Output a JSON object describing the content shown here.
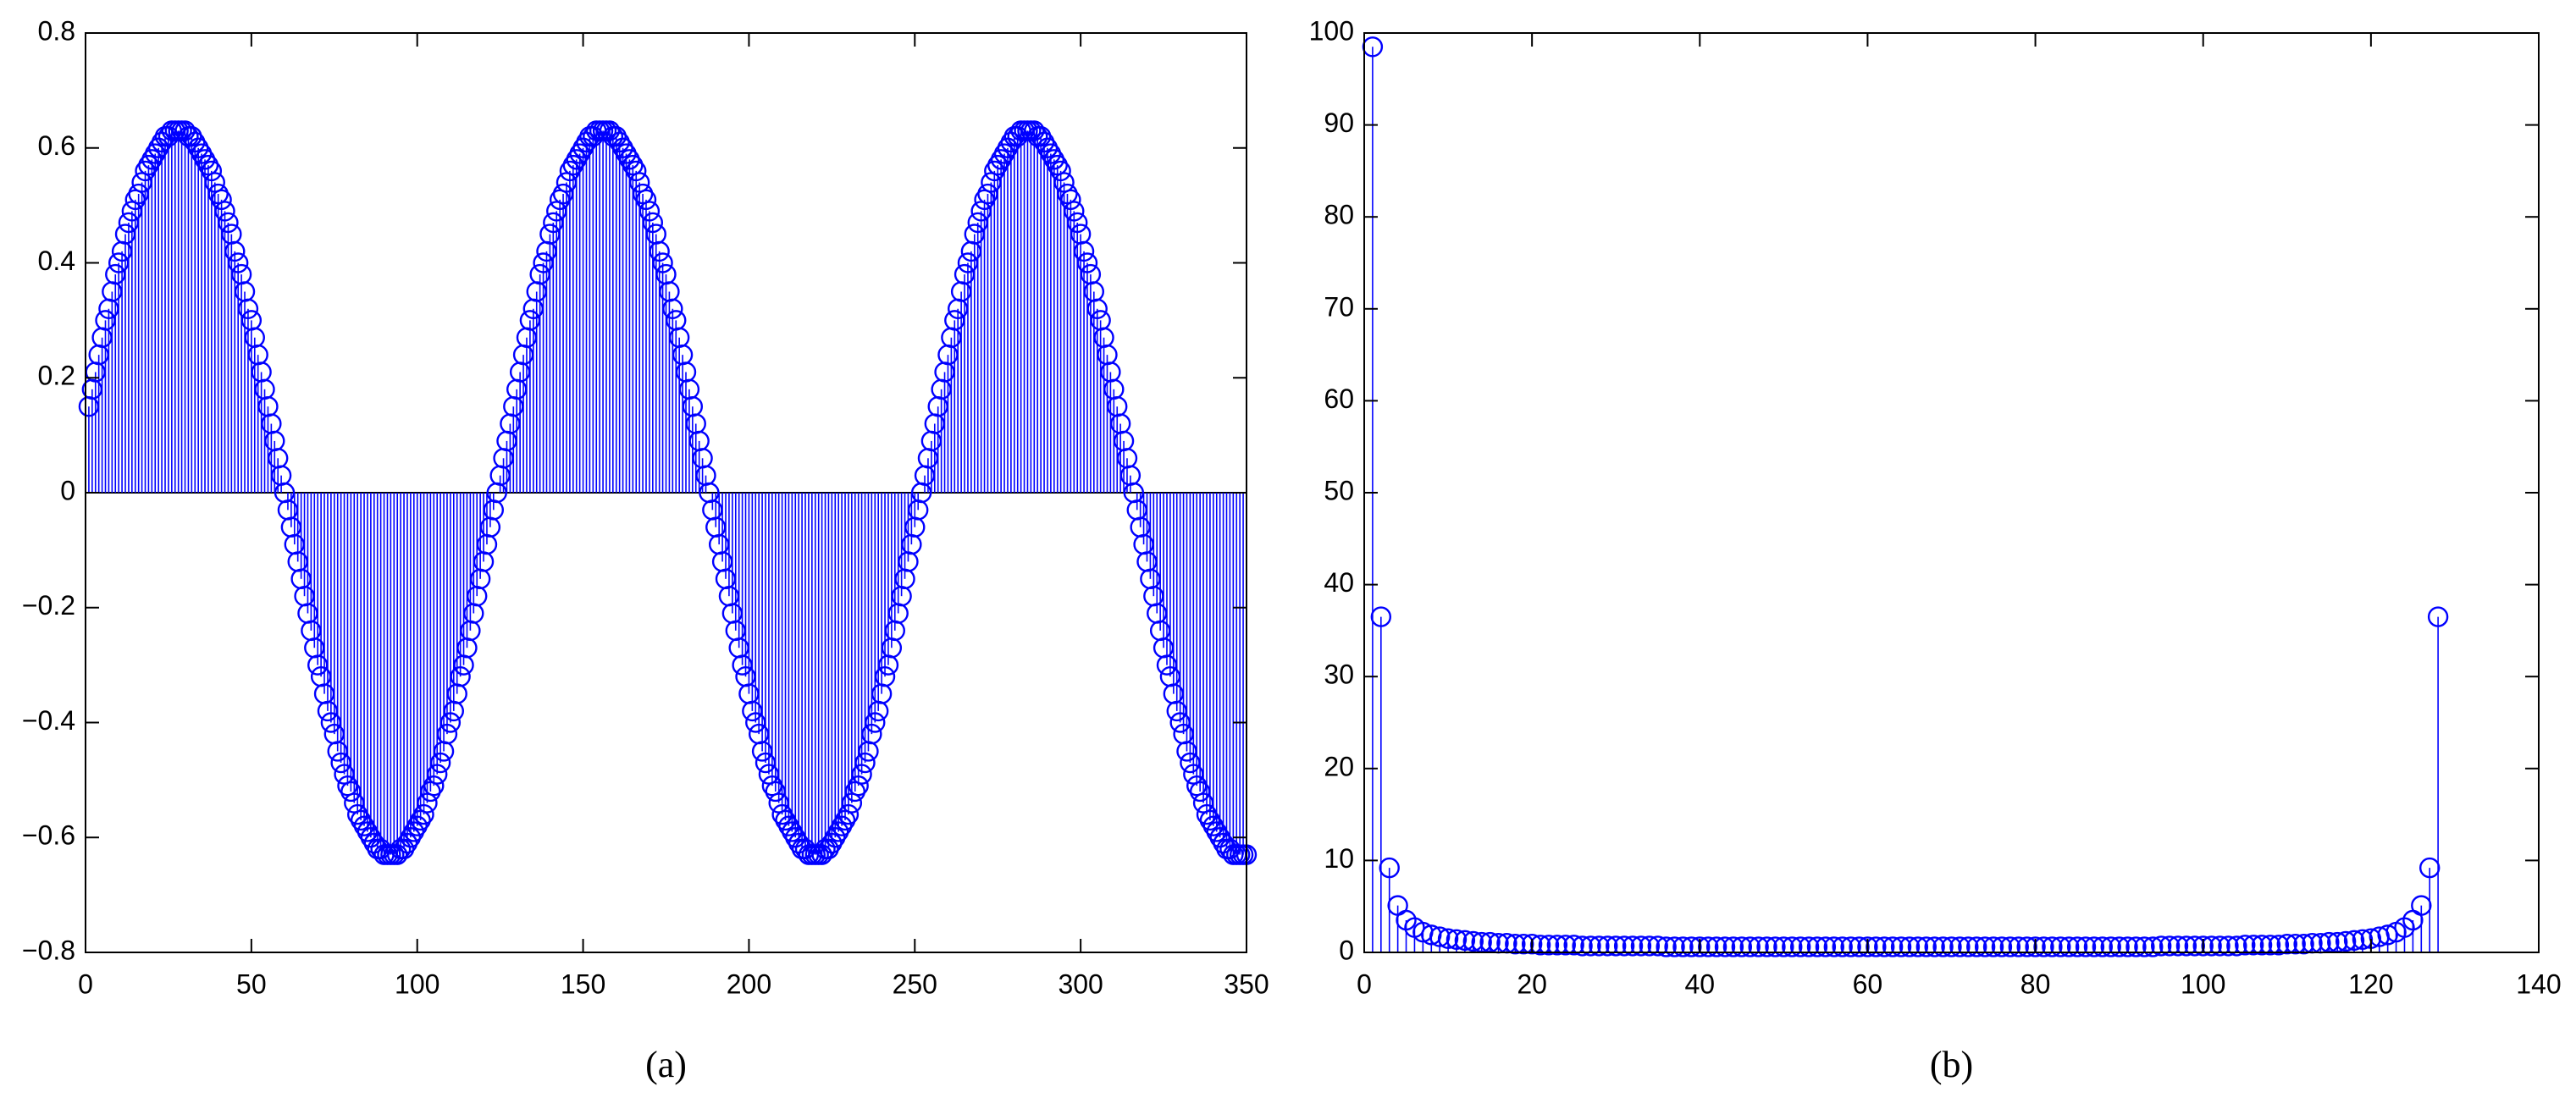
{
  "chart_data": [
    {
      "type": "stem",
      "caption": "(a)",
      "color": "#0000ff",
      "xlim": [
        0,
        350
      ],
      "xticks": [
        0,
        50,
        100,
        150,
        200,
        250,
        300,
        350
      ],
      "ylim": [
        -0.8,
        0.8
      ],
      "yticks": [
        {
          "value": -0.8,
          "label": "−0.8"
        },
        {
          "value": -0.6,
          "label": "−0.6"
        },
        {
          "value": -0.4,
          "label": "−0.4"
        },
        {
          "value": -0.2,
          "label": "−0.2"
        },
        0,
        0.2,
        0.4,
        0.6,
        0.8
      ],
      "x": [
        1,
        2,
        3,
        4,
        5,
        6,
        7,
        8,
        9,
        10,
        11,
        12,
        13,
        14,
        15,
        16,
        17,
        18,
        19,
        20,
        21,
        22,
        23,
        24,
        25,
        26,
        27,
        28,
        29,
        30,
        31,
        32,
        33,
        34,
        35,
        36,
        37,
        38,
        39,
        40,
        41,
        42,
        43,
        44,
        45,
        46,
        47,
        48,
        49,
        50,
        51,
        52,
        53,
        54,
        55,
        56,
        57,
        58,
        59,
        60,
        61,
        62,
        63,
        64,
        65,
        66,
        67,
        68,
        69,
        70,
        71,
        72,
        73,
        74,
        75,
        76,
        77,
        78,
        79,
        80,
        81,
        82,
        83,
        84,
        85,
        86,
        87,
        88,
        89,
        90,
        91,
        92,
        93,
        94,
        95,
        96,
        97,
        98,
        99,
        100,
        101,
        102,
        103,
        104,
        105,
        106,
        107,
        108,
        109,
        110,
        111,
        112,
        113,
        114,
        115,
        116,
        117,
        118,
        119,
        120,
        121,
        122,
        123,
        124,
        125,
        126,
        127,
        128,
        129,
        130,
        131,
        132,
        133,
        134,
        135,
        136,
        137,
        138,
        139,
        140,
        141,
        142,
        143,
        144,
        145,
        146,
        147,
        148,
        149,
        150,
        151,
        152,
        153,
        154,
        155,
        156,
        157,
        158,
        159,
        160,
        161,
        162,
        163,
        164,
        165,
        166,
        167,
        168,
        169,
        170,
        171,
        172,
        173,
        174,
        175,
        176,
        177,
        178,
        179,
        180,
        181,
        182,
        183,
        184,
        185,
        186,
        187,
        188,
        189,
        190,
        191,
        192,
        193,
        194,
        195,
        196,
        197,
        198,
        199,
        200,
        201,
        202,
        203,
        204,
        205,
        206,
        207,
        208,
        209,
        210,
        211,
        212,
        213,
        214,
        215,
        216,
        217,
        218,
        219,
        220,
        221,
        222,
        223,
        224,
        225,
        226,
        227,
        228,
        229,
        230,
        231,
        232,
        233,
        234,
        235,
        236,
        237,
        238,
        239,
        240,
        241,
        242,
        243,
        244,
        245,
        246,
        247,
        248,
        249,
        250,
        251,
        252,
        253,
        254,
        255,
        256,
        257,
        258,
        259,
        260,
        261,
        262,
        263,
        264,
        265,
        266,
        267,
        268,
        269,
        270,
        271,
        272,
        273,
        274,
        275,
        276,
        277,
        278,
        279,
        280,
        281,
        282,
        283,
        284,
        285,
        286,
        287,
        288,
        289,
        290,
        291,
        292,
        293,
        294,
        295,
        296,
        297,
        298,
        299,
        300,
        301,
        302,
        303,
        304,
        305,
        306,
        307,
        308,
        309,
        310,
        311,
        312,
        313,
        314,
        315,
        316,
        317,
        318,
        319,
        320,
        321,
        322,
        323,
        324,
        325,
        326,
        327,
        328,
        329,
        330,
        331,
        332,
        333,
        334,
        335,
        336,
        337,
        338,
        339,
        340,
        341,
        342,
        343,
        344,
        345,
        346,
        347,
        348,
        349,
        350
      ],
      "values": [
        0.15,
        0.18,
        0.21,
        0.24,
        0.27,
        0.3,
        0.32,
        0.35,
        0.38,
        0.4,
        0.42,
        0.45,
        0.47,
        0.49,
        0.51,
        0.52,
        0.54,
        0.56,
        0.57,
        0.58,
        0.59,
        0.6,
        0.61,
        0.62,
        0.62,
        0.63,
        0.63,
        0.63,
        0.63,
        0.63,
        0.62,
        0.62,
        0.61,
        0.6,
        0.59,
        0.58,
        0.57,
        0.56,
        0.54,
        0.52,
        0.51,
        0.49,
        0.47,
        0.45,
        0.42,
        0.4,
        0.38,
        0.35,
        0.32,
        0.3,
        0.27,
        0.24,
        0.21,
        0.18,
        0.15,
        0.12,
        0.09,
        0.06,
        0.03,
        0,
        -0.03,
        -0.06,
        -0.09,
        -0.12,
        -0.15,
        -0.18,
        -0.21,
        -0.24,
        -0.27,
        -0.3,
        -0.32,
        -0.35,
        -0.38,
        -0.4,
        -0.42,
        -0.45,
        -0.47,
        -0.49,
        -0.51,
        -0.52,
        -0.54,
        -0.56,
        -0.57,
        -0.58,
        -0.59,
        -0.6,
        -0.61,
        -0.62,
        -0.62,
        -0.63,
        -0.63,
        -0.63,
        -0.63,
        -0.63,
        -0.62,
        -0.62,
        -0.61,
        -0.6,
        -0.59,
        -0.58,
        -0.57,
        -0.56,
        -0.54,
        -0.52,
        -0.51,
        -0.49,
        -0.47,
        -0.45,
        -0.42,
        -0.4,
        -0.38,
        -0.35,
        -0.32,
        -0.3,
        -0.27,
        -0.24,
        -0.21,
        -0.18,
        -0.15,
        -0.12,
        -0.09,
        -0.06,
        -0.03,
        0,
        0.03,
        0.06,
        0.09,
        0.12,
        0.15,
        0.18,
        0.21,
        0.24,
        0.27,
        0.3,
        0.32,
        0.35,
        0.38,
        0.4,
        0.42,
        0.45,
        0.47,
        0.49,
        0.51,
        0.52,
        0.54,
        0.56,
        0.57,
        0.58,
        0.59,
        0.6,
        0.61,
        0.62,
        0.62,
        0.63,
        0.63,
        0.63,
        0.63,
        0.63,
        0.62,
        0.62,
        0.61,
        0.6,
        0.59,
        0.58,
        0.57,
        0.56,
        0.54,
        0.52,
        0.51,
        0.49,
        0.47,
        0.45,
        0.42,
        0.4,
        0.38,
        0.35,
        0.32,
        0.3,
        0.27,
        0.24,
        0.21,
        0.18,
        0.15,
        0.12,
        0.09,
        0.06,
        0.03,
        0,
        -0.03,
        -0.06,
        -0.09,
        -0.12,
        -0.15,
        -0.18,
        -0.21,
        -0.24,
        -0.27,
        -0.3,
        -0.32,
        -0.35,
        -0.38,
        -0.4,
        -0.42,
        -0.45,
        -0.47,
        -0.49,
        -0.51,
        -0.52,
        -0.54,
        -0.56,
        -0.57,
        -0.58,
        -0.59,
        -0.6,
        -0.61,
        -0.62,
        -0.62,
        -0.63,
        -0.63,
        -0.63,
        -0.63,
        -0.63,
        -0.62,
        -0.62,
        -0.61,
        -0.6,
        -0.59,
        -0.58,
        -0.57,
        -0.56,
        -0.54,
        -0.52,
        -0.51,
        -0.49,
        -0.47,
        -0.45,
        -0.42,
        -0.4,
        -0.38,
        -0.35,
        -0.32,
        -0.3,
        -0.27,
        -0.24,
        -0.21,
        -0.18,
        -0.15,
        -0.12,
        -0.09,
        -0.06,
        -0.03,
        0,
        0.03,
        0.06,
        0.09,
        0.12,
        0.15,
        0.18,
        0.21,
        0.24,
        0.27,
        0.3,
        0.32,
        0.35,
        0.38,
        0.4,
        0.42,
        0.45,
        0.47,
        0.49,
        0.51,
        0.52,
        0.54,
        0.56,
        0.57,
        0.58,
        0.59,
        0.6,
        0.61,
        0.62,
        0.62,
        0.63,
        0.63,
        0.63,
        0.63,
        0.63,
        0.62,
        0.62,
        0.61,
        0.6,
        0.59,
        0.58,
        0.57,
        0.56,
        0.54,
        0.52,
        0.51,
        0.49,
        0.47,
        0.45,
        0.42,
        0.4,
        0.38,
        0.35,
        0.32,
        0.3,
        0.27,
        0.24,
        0.21,
        0.18,
        0.15,
        0.12,
        0.09,
        0.06,
        0.03,
        0,
        -0.03,
        -0.06,
        -0.09,
        -0.12,
        -0.15,
        -0.18,
        -0.21,
        -0.24,
        -0.27,
        -0.3,
        -0.32,
        -0.35,
        -0.38,
        -0.4,
        -0.42,
        -0.45,
        -0.47,
        -0.49,
        -0.51,
        -0.52,
        -0.54,
        -0.56,
        -0.57,
        -0.58,
        -0.59,
        -0.6,
        -0.61,
        -0.62,
        -0.62,
        -0.63,
        -0.63,
        -0.63,
        -0.63,
        -0.63
      ]
    },
    {
      "type": "stem",
      "caption": "(b)",
      "color": "#0000ff",
      "xlim": [
        0,
        140
      ],
      "xticks": [
        0,
        20,
        40,
        60,
        80,
        100,
        120,
        140
      ],
      "ylim": [
        0,
        100
      ],
      "yticks": [
        0,
        10,
        20,
        30,
        40,
        50,
        60,
        70,
        80,
        90,
        100
      ],
      "x": [
        1,
        2,
        3,
        4,
        5,
        6,
        7,
        8,
        9,
        10,
        11,
        12,
        13,
        14,
        15,
        16,
        17,
        18,
        19,
        20,
        21,
        22,
        23,
        24,
        25,
        26,
        27,
        28,
        29,
        30,
        31,
        32,
        33,
        34,
        35,
        36,
        37,
        38,
        39,
        40,
        41,
        42,
        43,
        44,
        45,
        46,
        47,
        48,
        49,
        50,
        51,
        52,
        53,
        54,
        55,
        56,
        57,
        58,
        59,
        60,
        61,
        62,
        63,
        64,
        65,
        66,
        67,
        68,
        69,
        70,
        71,
        72,
        73,
        74,
        75,
        76,
        77,
        78,
        79,
        80,
        81,
        82,
        83,
        84,
        85,
        86,
        87,
        88,
        89,
        90,
        91,
        92,
        93,
        94,
        95,
        96,
        97,
        98,
        99,
        100,
        101,
        102,
        103,
        104,
        105,
        106,
        107,
        108,
        109,
        110,
        111,
        112,
        113,
        114,
        115,
        116,
        117,
        118,
        119,
        120,
        121,
        122,
        123,
        124,
        125,
        126,
        127,
        128
      ],
      "values": [
        98.5,
        36.5,
        9.2,
        5.1,
        3.5,
        2.7,
        2.2,
        1.9,
        1.7,
        1.5,
        1.4,
        1.3,
        1.2,
        1.1,
        1.1,
        1.0,
        1.0,
        0.9,
        0.9,
        0.9,
        0.8,
        0.8,
        0.8,
        0.8,
        0.8,
        0.7,
        0.7,
        0.7,
        0.7,
        0.7,
        0.7,
        0.7,
        0.7,
        0.7,
        0.7,
        0.6,
        0.6,
        0.6,
        0.6,
        0.6,
        0.6,
        0.6,
        0.6,
        0.6,
        0.6,
        0.6,
        0.6,
        0.6,
        0.6,
        0.6,
        0.6,
        0.6,
        0.6,
        0.6,
        0.6,
        0.6,
        0.6,
        0.6,
        0.6,
        0.6,
        0.6,
        0.6,
        0.6,
        0.6,
        0.6,
        0.6,
        0.6,
        0.6,
        0.6,
        0.6,
        0.6,
        0.6,
        0.6,
        0.6,
        0.6,
        0.6,
        0.6,
        0.6,
        0.6,
        0.6,
        0.6,
        0.6,
        0.6,
        0.6,
        0.6,
        0.6,
        0.6,
        0.6,
        0.6,
        0.6,
        0.6,
        0.6,
        0.6,
        0.6,
        0.7,
        0.7,
        0.7,
        0.7,
        0.7,
        0.7,
        0.7,
        0.7,
        0.7,
        0.7,
        0.8,
        0.8,
        0.8,
        0.8,
        0.8,
        0.9,
        0.9,
        0.9,
        1.0,
        1.0,
        1.1,
        1.1,
        1.2,
        1.3,
        1.4,
        1.5,
        1.7,
        1.9,
        2.2,
        2.7,
        3.5,
        5.1,
        9.2,
        36.5
      ]
    }
  ]
}
